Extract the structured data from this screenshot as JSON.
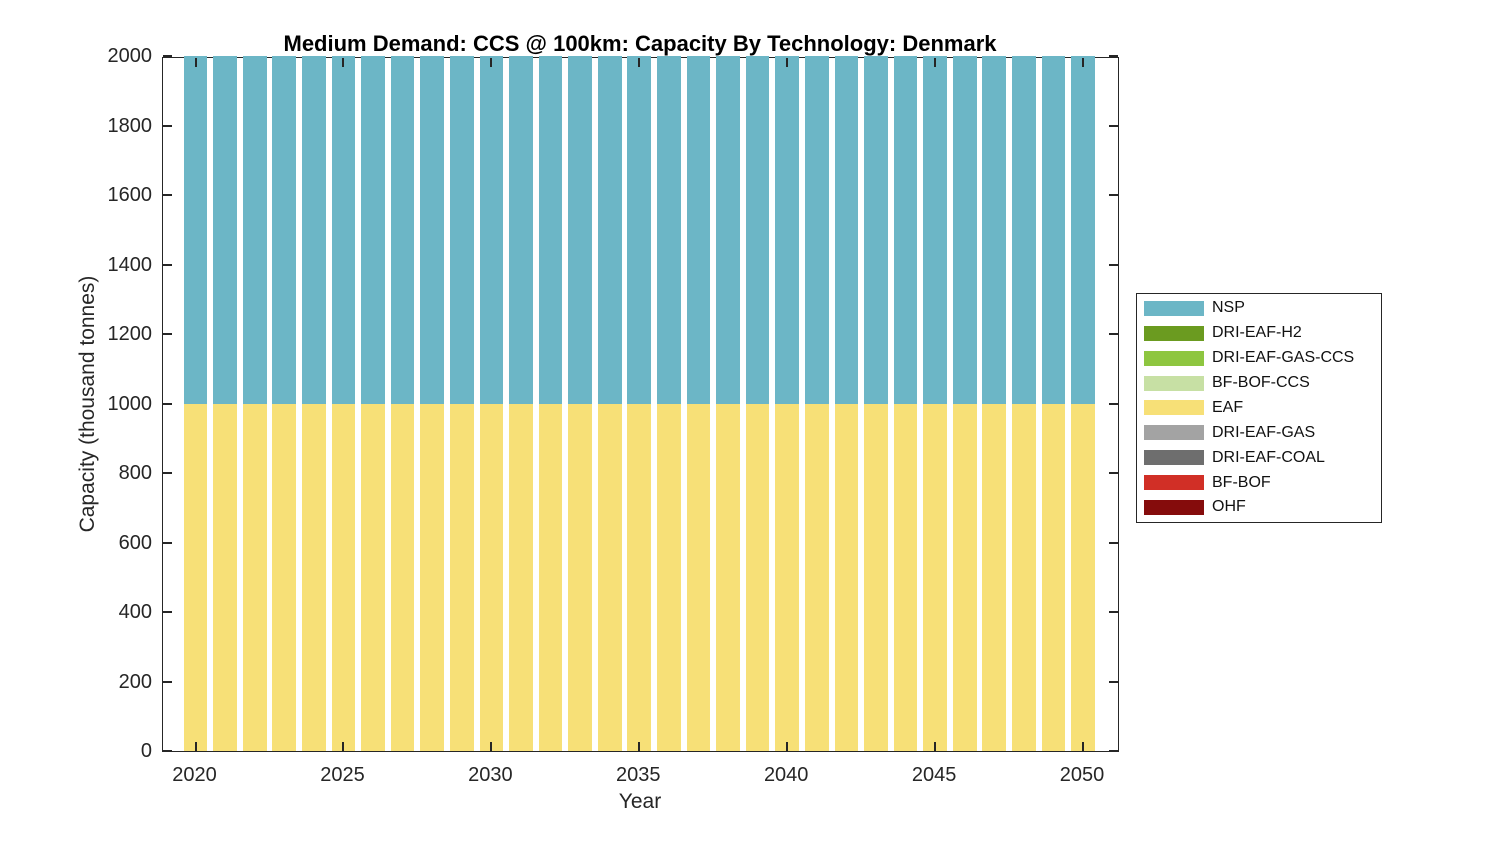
{
  "figure": {
    "title": "Medium Demand: CCS @ 100km: Capacity By Technology: Denmark",
    "xlabel": "Year",
    "ylabel": "Capacity (thousand tonnes)"
  },
  "colors": {
    "axis": "#262626",
    "background": "#ffffff",
    "nsp_teal": "#6CB6C6",
    "eaf_yellow": "#F7E077"
  },
  "legend": {
    "items": [
      {
        "label": "NSP",
        "color": "#6CB6C6"
      },
      {
        "label": "DRI-EAF-H2",
        "color": "#6B9B20"
      },
      {
        "label": "DRI-EAF-GAS-CCS",
        "color": "#8EC640"
      },
      {
        "label": "BF-BOF-CCS",
        "color": "#C7E0A4"
      },
      {
        "label": "EAF",
        "color": "#F7E077"
      },
      {
        "label": "DRI-EAF-GAS",
        "color": "#A3A3A3"
      },
      {
        "label": "DRI-EAF-COAL",
        "color": "#6E6E6E"
      },
      {
        "label": "BF-BOF",
        "color": "#D12F26"
      },
      {
        "label": "OHF",
        "color": "#850C0C"
      }
    ]
  },
  "chart_data": {
    "type": "bar",
    "stacked": true,
    "title": "Medium Demand: CCS @ 100km: Capacity By Technology: Denmark",
    "xlabel": "Year",
    "ylabel": "Capacity (thousand tonnes)",
    "xlim": [
      2018.9,
      2051.25
    ],
    "ylim": [
      0,
      2000
    ],
    "xticks": [
      2020,
      2025,
      2030,
      2035,
      2040,
      2045,
      2050
    ],
    "yticks": [
      0,
      200,
      400,
      600,
      800,
      1000,
      1200,
      1400,
      1600,
      1800,
      2000
    ],
    "bar_width": 0.8,
    "grid": false,
    "legend_position": "right-outside",
    "x": [
      2020,
      2021,
      2022,
      2023,
      2024,
      2025,
      2026,
      2027,
      2028,
      2029,
      2030,
      2031,
      2032,
      2033,
      2034,
      2035,
      2036,
      2037,
      2038,
      2039,
      2040,
      2041,
      2042,
      2043,
      2044,
      2045,
      2046,
      2047,
      2048,
      2049,
      2050
    ],
    "series": [
      {
        "name": "OHF",
        "color": "#850C0C",
        "values": [
          0,
          0,
          0,
          0,
          0,
          0,
          0,
          0,
          0,
          0,
          0,
          0,
          0,
          0,
          0,
          0,
          0,
          0,
          0,
          0,
          0,
          0,
          0,
          0,
          0,
          0,
          0,
          0,
          0,
          0,
          0
        ]
      },
      {
        "name": "BF-BOF",
        "color": "#D12F26",
        "values": [
          0,
          0,
          0,
          0,
          0,
          0,
          0,
          0,
          0,
          0,
          0,
          0,
          0,
          0,
          0,
          0,
          0,
          0,
          0,
          0,
          0,
          0,
          0,
          0,
          0,
          0,
          0,
          0,
          0,
          0,
          0
        ]
      },
      {
        "name": "DRI-EAF-COAL",
        "color": "#6E6E6E",
        "values": [
          0,
          0,
          0,
          0,
          0,
          0,
          0,
          0,
          0,
          0,
          0,
          0,
          0,
          0,
          0,
          0,
          0,
          0,
          0,
          0,
          0,
          0,
          0,
          0,
          0,
          0,
          0,
          0,
          0,
          0,
          0
        ]
      },
      {
        "name": "DRI-EAF-GAS",
        "color": "#A3A3A3",
        "values": [
          0,
          0,
          0,
          0,
          0,
          0,
          0,
          0,
          0,
          0,
          0,
          0,
          0,
          0,
          0,
          0,
          0,
          0,
          0,
          0,
          0,
          0,
          0,
          0,
          0,
          0,
          0,
          0,
          0,
          0,
          0
        ]
      },
      {
        "name": "EAF",
        "color": "#F7E077",
        "values": [
          1000,
          1000,
          1000,
          1000,
          1000,
          1000,
          1000,
          1000,
          1000,
          1000,
          1000,
          1000,
          1000,
          1000,
          1000,
          1000,
          1000,
          1000,
          1000,
          1000,
          1000,
          1000,
          1000,
          1000,
          1000,
          1000,
          1000,
          1000,
          1000,
          1000,
          1000
        ]
      },
      {
        "name": "BF-BOF-CCS",
        "color": "#C7E0A4",
        "values": [
          0,
          0,
          0,
          0,
          0,
          0,
          0,
          0,
          0,
          0,
          0,
          0,
          0,
          0,
          0,
          0,
          0,
          0,
          0,
          0,
          0,
          0,
          0,
          0,
          0,
          0,
          0,
          0,
          0,
          0,
          0
        ]
      },
      {
        "name": "DRI-EAF-GAS-CCS",
        "color": "#8EC640",
        "values": [
          0,
          0,
          0,
          0,
          0,
          0,
          0,
          0,
          0,
          0,
          0,
          0,
          0,
          0,
          0,
          0,
          0,
          0,
          0,
          0,
          0,
          0,
          0,
          0,
          0,
          0,
          0,
          0,
          0,
          0,
          0
        ]
      },
      {
        "name": "DRI-EAF-H2",
        "color": "#6B9B20",
        "values": [
          0,
          0,
          0,
          0,
          0,
          0,
          0,
          0,
          0,
          0,
          0,
          0,
          0,
          0,
          0,
          0,
          0,
          0,
          0,
          0,
          0,
          0,
          0,
          0,
          0,
          0,
          0,
          0,
          0,
          0,
          0
        ]
      },
      {
        "name": "NSP",
        "color": "#6CB6C6",
        "values": [
          1000,
          1000,
          1000,
          1000,
          1000,
          1000,
          1000,
          1000,
          1000,
          1000,
          1000,
          1000,
          1000,
          1000,
          1000,
          1000,
          1000,
          1000,
          1000,
          1000,
          1000,
          1000,
          1000,
          1000,
          1000,
          1000,
          1000,
          1000,
          1000,
          1000,
          1000
        ]
      }
    ]
  }
}
